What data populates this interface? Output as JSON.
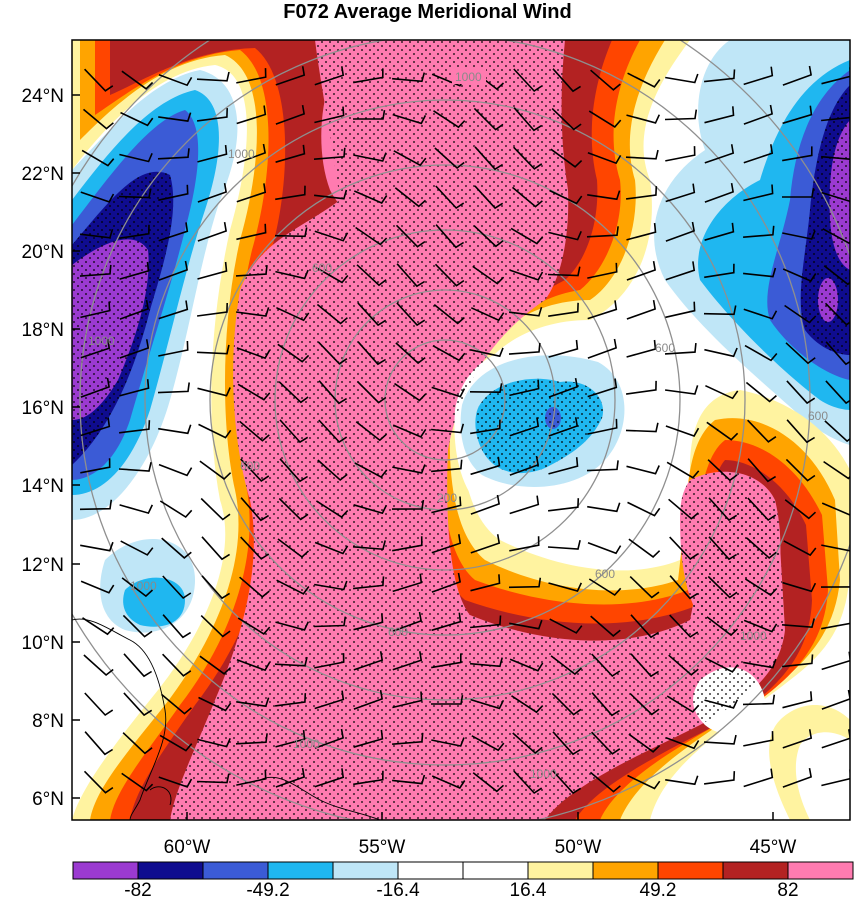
{
  "title": "F072 Average Meridional Wind",
  "axes": {
    "lat_labels": [
      "24°N",
      "22°N",
      "20°N",
      "18°N",
      "16°N",
      "14°N",
      "12°N",
      "10°N",
      "8°N",
      "6°N"
    ],
    "lon_labels": [
      "60°W",
      "55°W",
      "50°W",
      "45°W"
    ]
  },
  "contour_labels": [
    "1000",
    "1000",
    "600",
    "600",
    "200",
    "600",
    "600",
    "1000",
    "1000",
    "600",
    "1000",
    "1000",
    "1000",
    "600"
  ],
  "colorbar": {
    "labels": [
      "-82",
      "-49.2",
      "-16.4",
      "16.4",
      "49.2",
      "82"
    ],
    "colors": [
      "#9b3ad1",
      "#0f0c8f",
      "#3b5bd6",
      "#1fb7f0",
      "#bfe6f7",
      "#ffffff",
      "#ffffff",
      "#fff3a0",
      "#ffa400",
      "#ff4500",
      "#b32222",
      "#ff7bb0"
    ]
  },
  "palette": {
    "pink": "#ff7bb0",
    "darkred": "#b32222",
    "orangered": "#ff4500",
    "orange": "#ffa400",
    "yellow": "#fff3a0",
    "lightblue": "#bfe6f7",
    "cyan": "#1fb7f0",
    "blue": "#3b5bd6",
    "navy": "#0f0c8f",
    "purple": "#9b3ad1"
  }
}
